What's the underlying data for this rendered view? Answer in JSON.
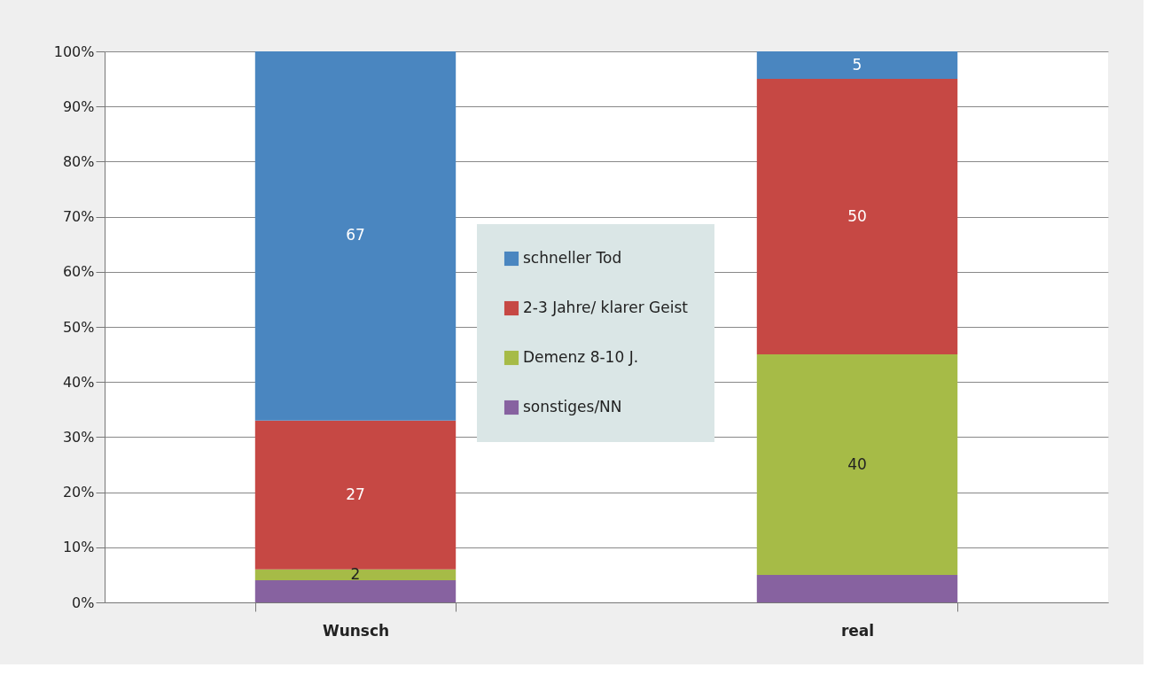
{
  "chart_data": {
    "type": "bar",
    "stacked": true,
    "categories": [
      "Wunsch",
      "real"
    ],
    "series": [
      {
        "name": "sonstiges/NN",
        "color": "#8762a0",
        "values": [
          4,
          5
        ],
        "value_labels": [
          null,
          null
        ]
      },
      {
        "name": "Demenz 8-10 J.",
        "color": "#a6bb47",
        "values": [
          2,
          40
        ],
        "value_labels": [
          "2",
          "40"
        ]
      },
      {
        "name": "2-3 Jahre/ klarer Geist",
        "color": "#c64844",
        "values": [
          27,
          50
        ],
        "value_labels": [
          "27",
          "50"
        ]
      },
      {
        "name": "schneller Tod",
        "color": "#4a86c0",
        "values": [
          67,
          5
        ],
        "value_labels": [
          "67",
          "5"
        ]
      }
    ],
    "ylim": [
      0,
      100
    ],
    "yticks": [
      {
        "value": 0,
        "label": "0%"
      },
      {
        "value": 10,
        "label": "10%"
      },
      {
        "value": 20,
        "label": "20%"
      },
      {
        "value": 30,
        "label": "30%"
      },
      {
        "value": 40,
        "label": "40%"
      },
      {
        "value": 50,
        "label": "50%"
      },
      {
        "value": 60,
        "label": "60%"
      },
      {
        "value": 70,
        "label": "70%"
      },
      {
        "value": 80,
        "label": "80%"
      },
      {
        "value": 90,
        "label": "90%"
      },
      {
        "value": 100,
        "label": "100%"
      }
    ],
    "grid": "y",
    "legend": "center"
  }
}
